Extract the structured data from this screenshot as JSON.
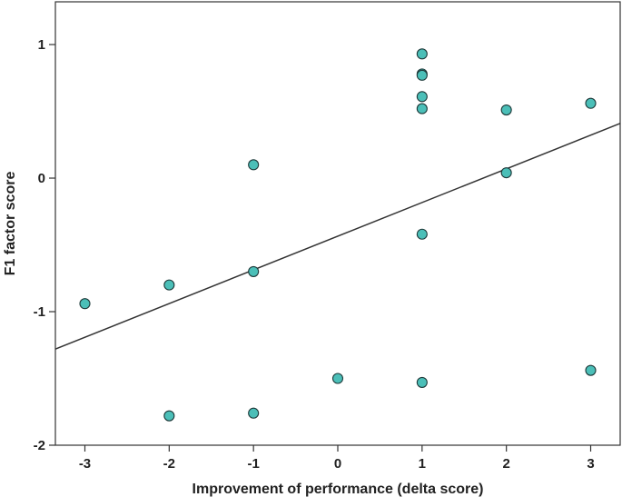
{
  "chart_data": {
    "type": "scatter",
    "title": "",
    "xlabel": "Improvement of performance (delta score)",
    "ylabel": "F1 factor score",
    "xlim": [
      -3.35,
      3.35
    ],
    "ylim": [
      -2.0,
      1.32
    ],
    "xticks": [
      -3,
      -2,
      -1,
      0,
      1,
      2,
      3
    ],
    "xtick_labels": [
      "-3",
      "-2",
      "-1",
      "0",
      "1",
      "2",
      "3"
    ],
    "yticks": [
      -2,
      -1,
      0,
      1
    ],
    "ytick_labels": [
      "-2",
      "-1",
      "0",
      "1"
    ],
    "grid": false,
    "points": [
      {
        "x": -3,
        "y": -0.94
      },
      {
        "x": -2,
        "y": -0.8
      },
      {
        "x": -2,
        "y": -1.78
      },
      {
        "x": -1,
        "y": 0.1
      },
      {
        "x": -1,
        "y": -0.7
      },
      {
        "x": -1,
        "y": -1.76
      },
      {
        "x": 0,
        "y": -1.5
      },
      {
        "x": 1,
        "y": 0.93
      },
      {
        "x": 1,
        "y": 0.78
      },
      {
        "x": 1,
        "y": 0.77
      },
      {
        "x": 1,
        "y": 0.61
      },
      {
        "x": 1,
        "y": 0.52
      },
      {
        "x": 1,
        "y": -0.42
      },
      {
        "x": 1,
        "y": -1.53
      },
      {
        "x": 2,
        "y": 0.51
      },
      {
        "x": 2,
        "y": 0.04
      },
      {
        "x": 3,
        "y": 0.56
      },
      {
        "x": 3,
        "y": -1.44
      }
    ],
    "fit_line": {
      "x": [
        -3.35,
        3.35
      ],
      "y": [
        -1.28,
        0.41
      ]
    },
    "marker_color": "#4bbfb8",
    "marker_edge_color": "#1e3a3a",
    "line_color": "#333333"
  }
}
